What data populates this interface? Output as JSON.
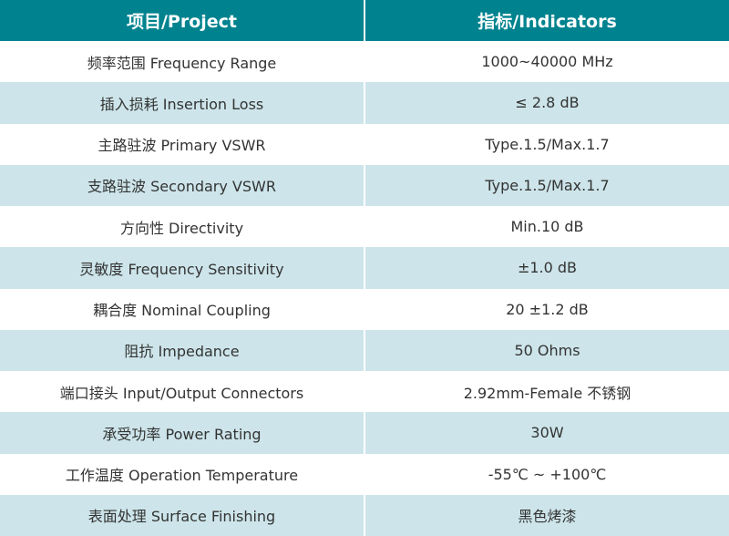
{
  "colors": {
    "header": "#00838f",
    "alt_row": "#cde5ea"
  },
  "header": {
    "project": "项目/Project",
    "indicators": "指标/Indicators"
  },
  "rows": [
    {
      "project": "频率范围 Frequency Range",
      "indicator": "1000~40000 MHz"
    },
    {
      "project": "插入损耗 Insertion Loss",
      "indicator": "≤ 2.8 dB"
    },
    {
      "project": "主路驻波 Primary VSWR",
      "indicator": "Type.1.5/Max.1.7"
    },
    {
      "project": "支路驻波 Secondary VSWR",
      "indicator": "Type.1.5/Max.1.7"
    },
    {
      "project": "方向性 Directivity",
      "indicator": "Min.10 dB"
    },
    {
      "project": "灵敏度 Frequency Sensitivity",
      "indicator": "±1.0 dB"
    },
    {
      "project": "耦合度 Nominal Coupling",
      "indicator": "20 ±1.2 dB"
    },
    {
      "project": "阻抗 Impedance",
      "indicator": "50 Ohms"
    },
    {
      "project": "端口接头 Input/Output Connectors",
      "indicator": "2.92mm-Female 不锈钢"
    },
    {
      "project": "承受功率 Power Rating",
      "indicator": "30W"
    },
    {
      "project": "工作温度 Operation Temperature",
      "indicator": "-55℃ ~ +100℃"
    },
    {
      "project": "表面处理 Surface Finishing",
      "indicator": "黑色烤漆"
    }
  ]
}
